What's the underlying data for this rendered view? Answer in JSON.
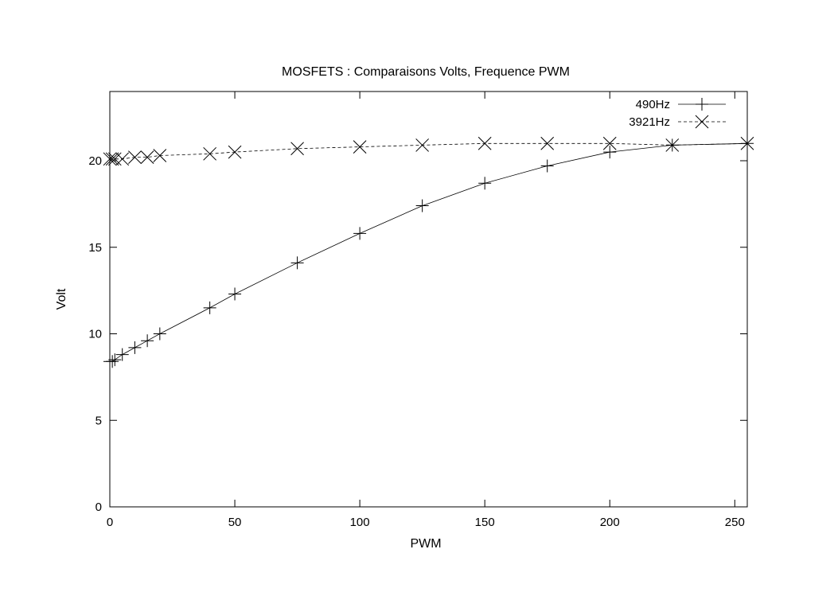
{
  "chart_data": {
    "type": "line",
    "title": "MOSFETS : Comparaisons Volts, Frequence PWM",
    "xlabel": "PWM",
    "ylabel": "Volt",
    "xlim": [
      0,
      255
    ],
    "ylim": [
      0,
      24
    ],
    "xticks": [
      0,
      50,
      100,
      150,
      200,
      250
    ],
    "yticks": [
      0,
      5,
      10,
      15,
      20
    ],
    "grid": false,
    "legend_position": "top-right",
    "series": [
      {
        "name": "490Hz",
        "marker": "plus",
        "line_style": "solid",
        "x": [
          0,
          1,
          2,
          5,
          10,
          15,
          20,
          40,
          50,
          75,
          100,
          125,
          150,
          175,
          200,
          225,
          255
        ],
        "y": [
          8.4,
          8.4,
          8.5,
          8.8,
          9.2,
          9.6,
          10.0,
          11.5,
          12.3,
          14.1,
          15.8,
          17.4,
          18.7,
          19.7,
          20.5,
          20.9,
          21.0
        ]
      },
      {
        "name": "3921Hz",
        "marker": "cross",
        "line_style": "dashed",
        "x": [
          0,
          1,
          2,
          5,
          10,
          15,
          20,
          40,
          50,
          75,
          100,
          125,
          150,
          175,
          200,
          225,
          255
        ],
        "y": [
          20.1,
          20.1,
          20.1,
          20.1,
          20.2,
          20.2,
          20.3,
          20.4,
          20.5,
          20.7,
          20.8,
          20.9,
          21.0,
          21.0,
          21.0,
          20.9,
          21.0
        ]
      }
    ]
  }
}
